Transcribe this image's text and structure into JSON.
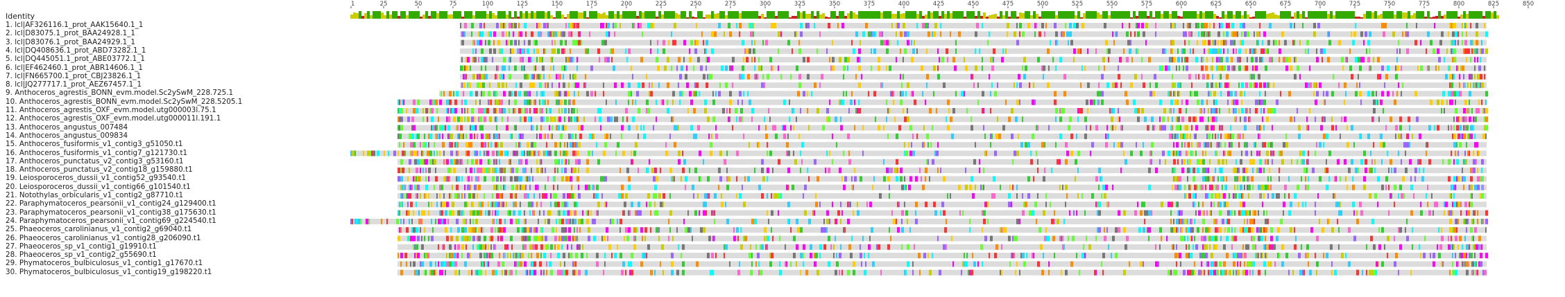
{
  "header": {
    "identity_label": "Identity"
  },
  "ruler": {
    "ticks": [
      1,
      25,
      50,
      75,
      100,
      125,
      150,
      175,
      200,
      225,
      250,
      275,
      300,
      325,
      350,
      375,
      400,
      425,
      450,
      475,
      500,
      525,
      550,
      575,
      600,
      625,
      650,
      675,
      700,
      725,
      750,
      775,
      800,
      825,
      850
    ]
  },
  "alignment": {
    "sequences": [
      {
        "label": "1. lcl|AF326116.1_prot_AAK15640.1_1",
        "start": 80,
        "end": 820
      },
      {
        "label": "2. lcl|D83075.1_prot_BAA24928.1_1",
        "start": 80,
        "end": 820
      },
      {
        "label": "3. lcl|D83076.1_prot_BAA24929.1_1",
        "start": 80,
        "end": 820
      },
      {
        "label": "4. lcl|DQ408636.1_prot_ABD73282.1_1",
        "start": 80,
        "end": 820
      },
      {
        "label": "5. lcl|DQ445051.1_prot_ABE03772.1_1",
        "start": 80,
        "end": 820
      },
      {
        "label": "6. lcl|EF462460.1_prot_ABR14606.1_1",
        "start": 80,
        "end": 820
      },
      {
        "label": "7. lcl|FN665700.1_prot_CBJ23826.1_1",
        "start": 80,
        "end": 820
      },
      {
        "label": "8. lcl|JQ277717.1_prot_AEZ67457.1_1",
        "start": 80,
        "end": 820
      },
      {
        "label": "9. Anthoceros_agrestis_BONN_evm.model.Sc2ySwM_228.725.1",
        "start": 65,
        "end": 820
      },
      {
        "label": "10. Anthoceros_agrestis_BONN_evm.model.Sc2ySwM_228.5205.1",
        "start": 35,
        "end": 820
      },
      {
        "label": "11. Anthoceros_agrestis_OXF_evm.model.utg000003l.75.1",
        "start": 35,
        "end": 820
      },
      {
        "label": "12. Anthoceros_agrestis_OXF_evm.model.utg000011l.191.1",
        "start": 35,
        "end": 820
      },
      {
        "label": "13. Anthoceros_angustus_007484",
        "start": 35,
        "end": 820
      },
      {
        "label": "14. Anthoceros_angustus_009834",
        "start": 35,
        "end": 820
      },
      {
        "label": "15. Anthoceros_fusiformis_v1_contig3_g51050.t1",
        "start": 35,
        "end": 820
      },
      {
        "label": "16. Anthoceros_fusiformis_v1_contig7_g121730.t1",
        "start": 1,
        "end": 820
      },
      {
        "label": "17. Anthoceros_punctatus_v2_contig3_g53160.t1",
        "start": 35,
        "end": 820
      },
      {
        "label": "18. Anthoceros_punctatus_v2_contig18_g159880.t1",
        "start": 35,
        "end": 820
      },
      {
        "label": "19. Leiosporoceros_dussii_v1_contig52_g93540.t1",
        "start": 35,
        "end": 820
      },
      {
        "label": "20. Leiosporoceros_dussii_v1_contig66_g101540.t1",
        "start": 35,
        "end": 820
      },
      {
        "label": "21. Notothylas_orbicularis_v1_contig2_g87710.t1",
        "start": 35,
        "end": 820
      },
      {
        "label": "22. Paraphymatoceros_pearsonii_v1_contig24_g129400.t1",
        "start": 35,
        "end": 820
      },
      {
        "label": "23. Paraphymatoceros_pearsonii_v1_contig38_g175630.t1",
        "start": 35,
        "end": 820
      },
      {
        "label": "24. Paraphymatoceros_pearsonii_v1_contig69_g224540.t1",
        "start": 1,
        "end": 820
      },
      {
        "label": "25. Phaeoceros_carolinianus_v1_contig2_g69040.t1",
        "start": 35,
        "end": 820
      },
      {
        "label": "26. Phaeoceros_carolinianus_v1_contig28_g206090.t1",
        "start": 35,
        "end": 820
      },
      {
        "label": "27. Phaeoceros_sp_v1_contig1_g19910.t1",
        "start": 35,
        "end": 820
      },
      {
        "label": "28. Phaeoceros_sp_v1_contig2_g55690.t1",
        "start": 35,
        "end": 820
      },
      {
        "label": "29. Phymatoceros_bulbiculosus_v1_contig1_g17670.t1",
        "start": 35,
        "end": 820
      },
      {
        "label": "30. Phymatoceros_bulbiculosus_v1_contig19_g198220.t1",
        "start": 35,
        "end": 820
      }
    ],
    "colors": {
      "gap": "#dcdcdc",
      "residue_palette": [
        "#ff00ff",
        "#33cc33",
        "#00ffff",
        "#ffcc00",
        "#ff8c00",
        "#ff66cc",
        "#66ff33",
        "#9966ff",
        "#ff3333",
        "#33ccff",
        "#cccc00",
        "#777777"
      ],
      "identity_high": "#33aa00",
      "identity_mid": "#cccc00",
      "identity_low": "#cc2222"
    }
  }
}
